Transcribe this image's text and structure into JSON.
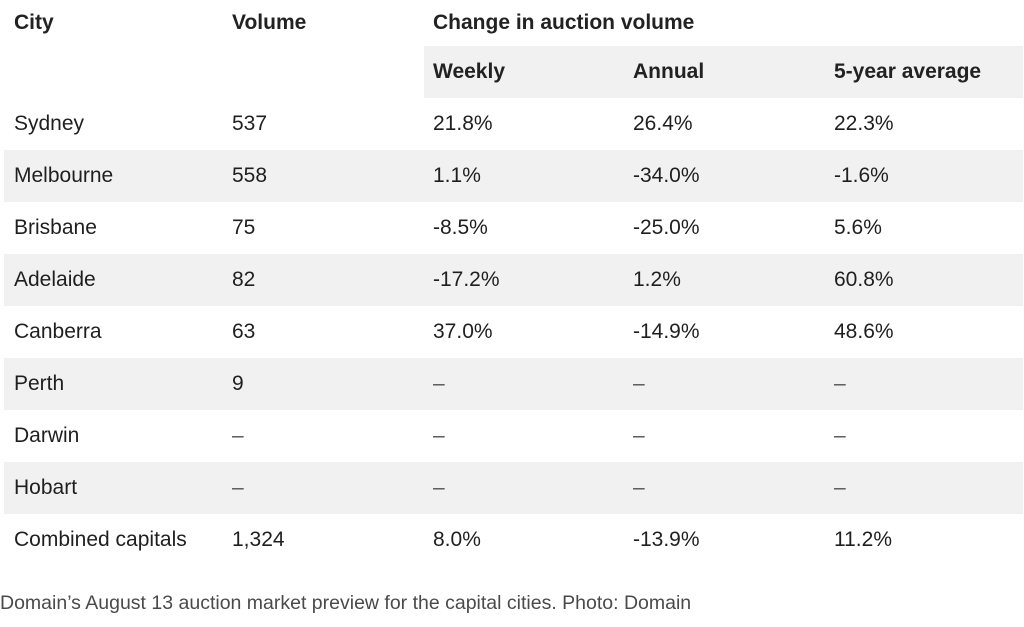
{
  "table": {
    "headers": {
      "city": "City",
      "volume": "Volume",
      "group": "Change in auction volume",
      "weekly": "Weekly",
      "annual": "Annual",
      "five_year": "5-year average"
    },
    "rows": [
      {
        "city": "Sydney",
        "volume": "537",
        "weekly": "21.8%",
        "annual": "26.4%",
        "five_year": "22.3%"
      },
      {
        "city": "Melbourne",
        "volume": "558",
        "weekly": "1.1%",
        "annual": "-34.0%",
        "five_year": "-1.6%"
      },
      {
        "city": "Brisbane",
        "volume": "75",
        "weekly": "-8.5%",
        "annual": "-25.0%",
        "five_year": "5.6%"
      },
      {
        "city": "Adelaide",
        "volume": "82",
        "weekly": "-17.2%",
        "annual": "1.2%",
        "five_year": "60.8%"
      },
      {
        "city": "Canberra",
        "volume": "63",
        "weekly": "37.0%",
        "annual": "-14.9%",
        "five_year": "48.6%"
      },
      {
        "city": "Perth",
        "volume": "9",
        "weekly": "–",
        "annual": "–",
        "five_year": "–"
      },
      {
        "city": "Darwin",
        "volume": "–",
        "weekly": "–",
        "annual": "–",
        "five_year": "–"
      },
      {
        "city": "Hobart",
        "volume": "–",
        "weekly": "–",
        "annual": "–",
        "five_year": "–"
      },
      {
        "city": "Combined capitals",
        "volume": "1,324",
        "weekly": "8.0%",
        "annual": "-13.9%",
        "five_year": "11.2%"
      }
    ]
  },
  "caption": "Domain’s August 13 auction market preview for the capital cities. Photo: Domain"
}
